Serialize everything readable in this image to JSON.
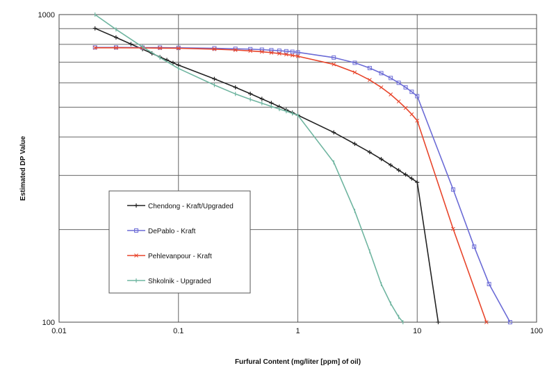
{
  "chart_data": {
    "type": "line",
    "xlabel": "Furfural Content (mg/liter [ppm] of oil)",
    "ylabel": "Estimated DP Value",
    "x_scale": "log",
    "y_scale": "log",
    "xlim": [
      0.01,
      100
    ],
    "ylim": [
      100,
      1000
    ],
    "x_ticks": [
      "0.01",
      "0.1",
      "1",
      "10",
      "100"
    ],
    "y_ticks": [
      "100",
      "1000"
    ],
    "grid": true,
    "legend_position": "lower-left",
    "series": [
      {
        "name": "Chendong - Kraft/Upgraded",
        "color": "#222222",
        "marker": "plus",
        "x": [
          0.02,
          0.03,
          0.04,
          0.05,
          0.06,
          0.07,
          0.08,
          0.09,
          0.1,
          0.2,
          0.3,
          0.4,
          0.5,
          0.6,
          0.7,
          0.8,
          0.9,
          1,
          2,
          3,
          4,
          5,
          6,
          7,
          8,
          9,
          10,
          15
        ],
        "y": [
          902,
          843,
          802,
          772,
          748,
          728,
          712,
          697,
          685,
          618,
          580,
          553,
          532,
          516,
          502,
          490,
          480,
          471,
          414,
          380,
          357,
          339,
          324,
          312,
          302,
          293,
          285,
          100
        ]
      },
      {
        "name": "DePablo - Kraft",
        "color": "#6b6bd6",
        "marker": "square",
        "x": [
          0.02,
          0.03,
          0.05,
          0.07,
          0.1,
          0.2,
          0.3,
          0.4,
          0.5,
          0.6,
          0.7,
          0.8,
          0.9,
          1,
          2,
          3,
          4,
          5,
          6,
          7,
          8,
          9,
          10,
          20,
          30,
          40,
          60
        ],
        "y": [
          782,
          782,
          781,
          781,
          780,
          777,
          774,
          772,
          769,
          766,
          763,
          760,
          757,
          754,
          725,
          697,
          670,
          645,
          622,
          600,
          580,
          561,
          543,
          270,
          176,
          133,
          100
        ]
      },
      {
        "name": "Pehlevanpour - Kraft",
        "color": "#e8452b",
        "marker": "cross",
        "x": [
          0.02,
          0.03,
          0.05,
          0.07,
          0.1,
          0.2,
          0.3,
          0.4,
          0.5,
          0.6,
          0.7,
          0.8,
          0.9,
          1,
          2,
          3,
          4,
          5,
          6,
          7,
          8,
          9,
          10,
          20,
          38
        ],
        "y": [
          780,
          780,
          779,
          778,
          777,
          772,
          767,
          762,
          757,
          752,
          747,
          742,
          737,
          732,
          689,
          649,
          613,
          580,
          550,
          522,
          497,
          474,
          452,
          201,
          100
        ]
      },
      {
        "name": "Shkolnik - Upgraded",
        "color": "#6fb5a0",
        "marker": "tick",
        "x": [
          0.02,
          0.03,
          0.05,
          0.07,
          0.1,
          0.2,
          0.3,
          0.4,
          0.5,
          0.6,
          0.7,
          0.8,
          0.9,
          1,
          2,
          3,
          4,
          5,
          6,
          7,
          7.6
        ],
        "y": [
          1000,
          895,
          785,
          725,
          668,
          590,
          552,
          530,
          515,
          503,
          493,
          485,
          477,
          471,
          331,
          230,
          170,
          133,
          115,
          104,
          100
        ]
      }
    ]
  }
}
